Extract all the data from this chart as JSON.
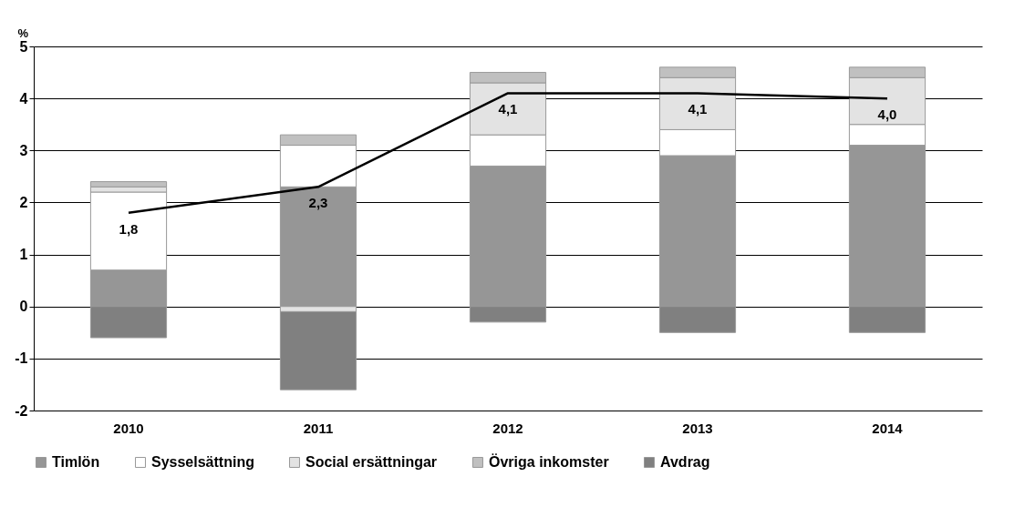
{
  "chart_data": {
    "type": "bar",
    "stacked": true,
    "ylabel": "%",
    "categories": [
      "2010",
      "2011",
      "2012",
      "2013",
      "2014"
    ],
    "series": [
      {
        "name": "Timlön",
        "color": "#969696",
        "values": [
          0.7,
          2.3,
          2.7,
          2.9,
          3.1
        ]
      },
      {
        "name": "Sysselsättning",
        "color": "#ffffff",
        "values": [
          1.5,
          0.8,
          0.6,
          0.5,
          0.4
        ]
      },
      {
        "name": "Social ersättningar",
        "color": "#e3e3e3",
        "values": [
          0.1,
          -0.1,
          1.0,
          1.0,
          0.9
        ]
      },
      {
        "name": "Övriga inkomster",
        "color": "#c0c0c0",
        "values": [
          0.1,
          0.2,
          0.2,
          0.2,
          0.2
        ]
      },
      {
        "name": "Avdrag",
        "color": "#808080",
        "values": [
          -0.6,
          -1.5,
          -0.3,
          -0.5,
          -0.5
        ]
      },
      {
        "type": "line",
        "color": "#000000",
        "values": [
          1.8,
          2.3,
          4.1,
          4.1,
          4.0
        ],
        "data_labels": true,
        "value_labels": [
          "1,8",
          "2,3",
          "4,1",
          "4,1",
          "4,0"
        ]
      }
    ],
    "ylim": [
      -2,
      5
    ],
    "yticks": [
      -2,
      -1,
      0,
      1,
      2,
      3,
      4,
      5
    ],
    "grid": "y",
    "legend": "bottom",
    "marker": "none"
  }
}
